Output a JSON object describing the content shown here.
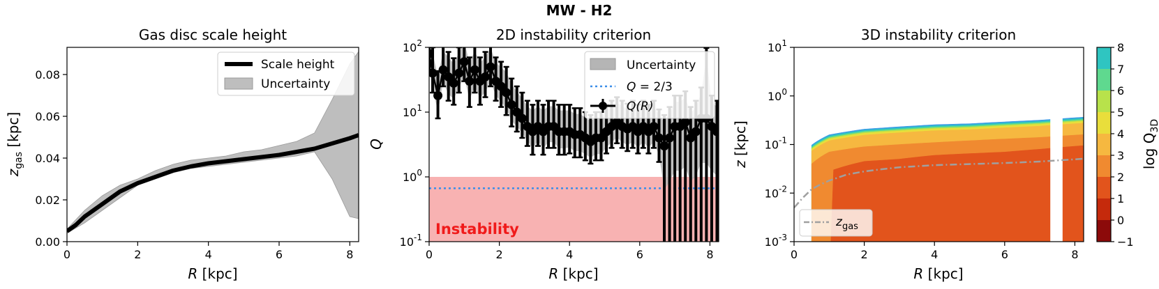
{
  "figure_title": "MW - H2",
  "chart_data": [
    {
      "type": "line",
      "title": "Gas disc scale height",
      "xlabel": "R [kpc]",
      "ylabel_main": "z",
      "ylabel_sub": "gas",
      "ylabel_unit": " [kpc]",
      "xlim": [
        0,
        8.25
      ],
      "ylim": [
        0,
        0.093
      ],
      "xticks": [
        "0",
        "2",
        "4",
        "6",
        "8"
      ],
      "yticks": [
        "0.00",
        "0.02",
        "0.04",
        "0.06",
        "0.08"
      ],
      "legend": [
        "Scale height",
        "Uncertainty"
      ],
      "series": [
        {
          "name": "Scale height",
          "x": [
            0,
            0.25,
            0.5,
            0.75,
            1.0,
            1.25,
            1.5,
            1.75,
            2.0,
            2.5,
            3.0,
            3.5,
            4.0,
            4.5,
            5.0,
            5.5,
            6.0,
            6.5,
            7.0,
            7.5,
            8.0,
            8.25
          ],
          "y": [
            0.005,
            0.008,
            0.012,
            0.015,
            0.018,
            0.021,
            0.024,
            0.026,
            0.028,
            0.031,
            0.034,
            0.036,
            0.0375,
            0.0385,
            0.0395,
            0.0405,
            0.0415,
            0.043,
            0.0445,
            0.047,
            0.0495,
            0.051
          ]
        },
        {
          "name": "Uncertainty",
          "x": [
            0,
            0.5,
            1.0,
            1.5,
            2.0,
            2.5,
            3.0,
            3.5,
            4.0,
            4.5,
            5.0,
            5.5,
            6.0,
            6.5,
            7.0,
            7.5,
            8.0,
            8.25
          ],
          "lower": [
            0.004,
            0.009,
            0.015,
            0.021,
            0.027,
            0.03,
            0.033,
            0.035,
            0.036,
            0.037,
            0.038,
            0.039,
            0.04,
            0.041,
            0.043,
            0.03,
            0.012,
            0.011
          ],
          "upper": [
            0.006,
            0.015,
            0.022,
            0.027,
            0.03,
            0.034,
            0.037,
            0.039,
            0.04,
            0.041,
            0.043,
            0.044,
            0.046,
            0.048,
            0.052,
            0.068,
            0.085,
            0.091
          ]
        }
      ]
    },
    {
      "type": "scatter",
      "title": "2D instability criterion",
      "xlabel": "R [kpc]",
      "ylabel": "Q",
      "xlim": [
        0,
        8.25
      ],
      "ylim_log10": [
        -1,
        2
      ],
      "xticks": [
        "0",
        "2",
        "4",
        "6",
        "8"
      ],
      "yticks": [
        [
          "10",
          "-1"
        ],
        [
          "10",
          "0"
        ],
        [
          "10",
          "1"
        ],
        [
          "10",
          "2"
        ]
      ],
      "legend": [
        "Uncertainty",
        "Q = 2/3",
        "Q(R)"
      ],
      "legend_math": {
        "q_label": "Q",
        "q_value": " = 2/3",
        "qr_label": "Q",
        "qr_arg": "(R)"
      },
      "threshold": 0.6667,
      "instability_region": {
        "label": "Instability",
        "ymax": 1
      },
      "series": [
        {
          "name": "Q(R)",
          "x": [
            0.0,
            0.1,
            0.25,
            0.4,
            0.55,
            0.7,
            0.85,
            1.0,
            1.15,
            1.3,
            1.45,
            1.6,
            1.75,
            1.9,
            2.05,
            2.2,
            2.35,
            2.5,
            2.65,
            2.8,
            2.95,
            3.1,
            3.25,
            3.4,
            3.55,
            3.7,
            3.85,
            4.0,
            4.15,
            4.3,
            4.45,
            4.6,
            4.75,
            4.9,
            5.05,
            5.2,
            5.35,
            5.5,
            5.65,
            5.8,
            5.95,
            6.1,
            6.25,
            6.4,
            6.55,
            6.7,
            6.85,
            7.0,
            7.15,
            7.3,
            7.45,
            7.6,
            7.75,
            7.9,
            8.05,
            8.2
          ],
          "y": [
            80,
            40,
            18,
            45,
            35,
            28,
            40,
            60,
            30,
            45,
            30,
            35,
            50,
            30,
            25,
            20,
            13,
            10,
            8,
            6,
            5,
            6,
            5,
            6,
            6,
            5,
            5,
            5,
            4.5,
            4.5,
            4,
            3.5,
            4,
            4,
            5,
            6,
            7,
            6,
            5.5,
            6,
            5,
            6,
            5,
            6,
            4,
            3,
            4,
            6,
            6,
            7,
            4,
            5,
            8,
            8,
            6,
            5
          ],
          "err_lo": [
            35,
            20,
            10,
            20,
            20,
            15,
            20,
            30,
            18,
            25,
            17,
            18,
            25,
            15,
            13,
            11,
            7,
            5,
            4,
            3,
            2.8,
            3,
            2.8,
            3.2,
            3.2,
            2.8,
            2.8,
            2.7,
            2.5,
            2.5,
            2.2,
            1.9,
            2.2,
            2.2,
            2.7,
            3.2,
            3.7,
            3.2,
            3.0,
            3.2,
            2.7,
            3.2,
            2.7,
            3.2,
            2.3,
            2.95,
            3.95,
            5.95,
            5.95,
            6.95,
            3.95,
            4.95,
            7.95,
            7.95,
            5.95,
            4.95
          ],
          "err_hi": [
            120,
            60,
            25,
            60,
            50,
            40,
            60,
            90,
            40,
            60,
            40,
            50,
            70,
            40,
            35,
            30,
            20,
            15,
            12,
            9,
            8,
            9,
            8,
            9,
            9,
            8,
            8,
            8,
            7,
            7,
            6,
            5.5,
            6,
            6,
            8,
            9,
            10,
            9,
            8,
            9,
            8,
            9,
            8,
            9,
            7,
            6,
            8,
            12,
            12,
            14,
            8,
            10,
            16,
            90,
            12,
            10
          ]
        }
      ]
    },
    {
      "type": "heatmap",
      "title": "3D instability criterion",
      "xlabel": "R [kpc]",
      "ylabel_main": "z",
      "ylabel_unit": " [kpc]",
      "xlim": [
        0,
        8.25
      ],
      "ylim_log10": [
        -3,
        1
      ],
      "xticks": [
        "0",
        "2",
        "4",
        "6",
        "8"
      ],
      "yticks": [
        [
          "10",
          "-3"
        ],
        [
          "10",
          "-2"
        ],
        [
          "10",
          "-1"
        ],
        [
          "10",
          "0"
        ],
        [
          "10",
          "1"
        ]
      ],
      "colorbar": {
        "label_main": "log Q",
        "label_sub": "3D",
        "levels": [
          -1,
          0,
          1,
          2,
          3,
          4,
          5,
          6,
          7,
          8
        ],
        "tick_labels": [
          "−1",
          "0",
          "1",
          "2",
          "3",
          "4",
          "5",
          "6",
          "7",
          "8"
        ],
        "colors": [
          "#8c0a0a",
          "#c52a0c",
          "#e2541c",
          "#f08a30",
          "#f6b840",
          "#e9de3b",
          "#b8e24b",
          "#5fd98f",
          "#2fc5c1",
          "#3a9ce6"
        ]
      },
      "zgas_line": {
        "label_main": "z",
        "label_sub": "gas",
        "x": [
          0,
          0.25,
          0.5,
          0.75,
          1.0,
          1.5,
          2.0,
          2.5,
          3.0,
          4.0,
          5.0,
          6.0,
          7.0,
          8.0,
          8.25
        ],
        "y": [
          0.005,
          0.008,
          0.012,
          0.015,
          0.018,
          0.024,
          0.028,
          0.031,
          0.034,
          0.0375,
          0.0395,
          0.0415,
          0.0445,
          0.0495,
          0.051
        ]
      },
      "data_gap_kpc": [
        7.3,
        7.65
      ],
      "band_top_z": {
        "x": [
          0.5,
          1.0,
          2.0,
          3.0,
          4.0,
          5.0,
          6.0,
          7.0,
          8.25
        ],
        "level3": [
          0.08,
          0.13,
          0.17,
          0.19,
          0.21,
          0.22,
          0.24,
          0.26,
          0.3
        ],
        "level2": [
          0.04,
          0.07,
          0.09,
          0.1,
          0.11,
          0.12,
          0.13,
          0.14,
          0.16
        ],
        "level1": [
          0.018,
          0.028,
          0.045,
          0.05,
          0.06,
          0.065,
          0.07,
          0.08,
          0.095
        ]
      }
    }
  ]
}
